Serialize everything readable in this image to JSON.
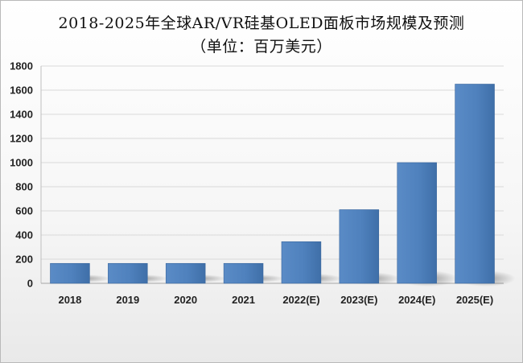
{
  "chart_data": {
    "type": "bar",
    "title": "2018-2025年全球AR/VR硅基OLED面板市场规模及预测",
    "subtitle": "（单位：百万美元）",
    "categories": [
      "2018",
      "2019",
      "2020",
      "2021",
      "2022(E)",
      "2023(E)",
      "2024(E)",
      "2025(E)"
    ],
    "values": [
      165,
      165,
      165,
      165,
      345,
      610,
      1000,
      1650
    ],
    "ylim": [
      0,
      1800
    ],
    "yticks": [
      0,
      200,
      400,
      600,
      800,
      1000,
      1200,
      1400,
      1600,
      1800
    ],
    "grid": true,
    "legend": "none",
    "colors": {
      "bar": "#4f81bd",
      "bar_dark": "#3d6ea8"
    }
  }
}
